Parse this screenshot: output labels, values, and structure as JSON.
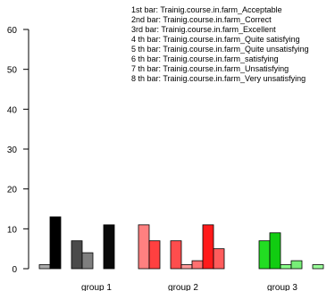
{
  "chart_data": {
    "type": "bar",
    "ylim": [
      0,
      60
    ],
    "yticks": [
      0,
      10,
      20,
      30,
      40,
      50,
      60
    ],
    "categories": [
      "group 1",
      "group 2",
      "group 3"
    ],
    "legend_lines": [
      "1st bar: Trainig.course.in.farm_Acceptable",
      "2nd bar: Trainig.course.in.farm_Correct",
      "3rd bar: Trainig.course.in.farm_Excellent",
      "4 th bar: Trainig.course.in.farm_Quite satisfying",
      "5 th bar: Trainig.course.in.farm_Quite unsatisfying",
      "6 th bar: Trainig.course.in.farm_satisfying",
      "7 th bar: Trainig.course.in.farm_Unsatisfying",
      "8 th bar: Trainig.course.in.farm_Very unsatisfying"
    ],
    "series": [
      {
        "values": [
          1,
          11,
          0
        ]
      },
      {
        "values": [
          13,
          7,
          0
        ]
      },
      {
        "values": [
          0,
          0,
          7
        ]
      },
      {
        "values": [
          7,
          7,
          9
        ]
      },
      {
        "values": [
          4,
          1,
          1
        ]
      },
      {
        "values": [
          0,
          2,
          2
        ]
      },
      {
        "values": [
          11,
          11,
          0
        ]
      },
      {
        "values": [
          0,
          5,
          1
        ]
      }
    ],
    "group_colors": [
      [
        "#a9a9a9",
        "#000000",
        "#ffffff",
        "#4a4a4a",
        "#7f7f7f",
        "#ffffff",
        "#0a0a0a",
        "#ffffff"
      ],
      [
        "#ff8080",
        "#ff4040",
        "#ffffff",
        "#ff4d4d",
        "#ff9999",
        "#ff7070",
        "#ff1a1a",
        "#ff5c5c"
      ],
      [
        "#ffffff",
        "#ffffff",
        "#22dd22",
        "#11cc11",
        "#88ff88",
        "#77ee77",
        "#ffffff",
        "#99ff99"
      ]
    ]
  }
}
